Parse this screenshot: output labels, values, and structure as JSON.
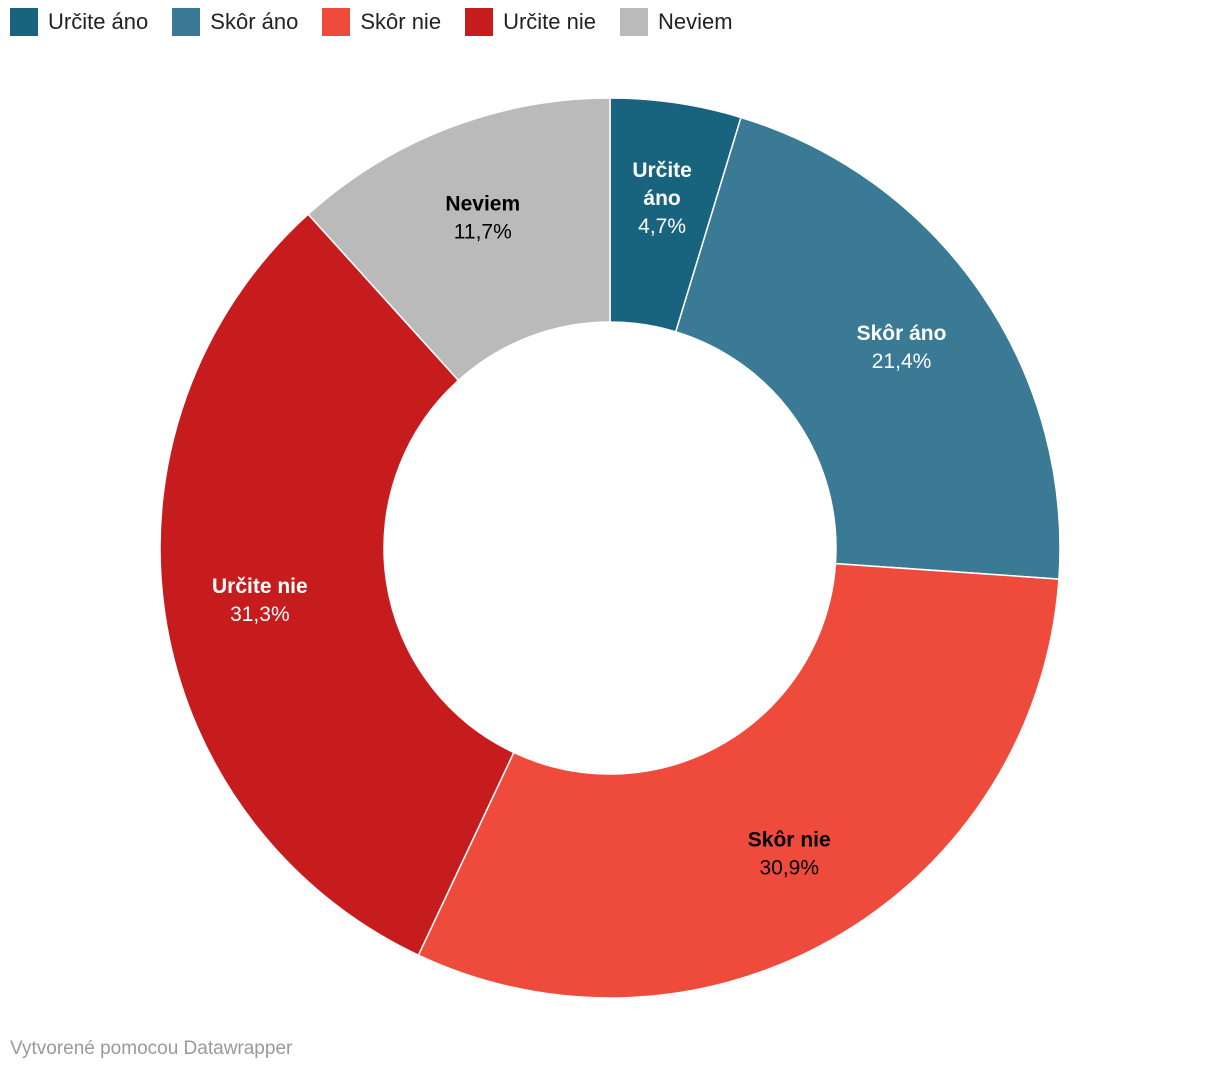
{
  "chart_data": {
    "type": "pie",
    "donut": true,
    "title": "",
    "legend_position": "top-left",
    "categories": [
      "Určite áno",
      "Skôr áno",
      "Skôr nie",
      "Určite nie",
      "Neviem"
    ],
    "values": [
      4.7,
      21.4,
      30.9,
      31.3,
      11.7
    ],
    "value_labels": [
      "4,7%",
      "21,4%",
      "30,9%",
      "31,3%",
      "11,7%"
    ],
    "slice_label_lines": [
      [
        "Určite",
        "áno"
      ],
      [
        "Skôr áno"
      ],
      [
        "Skôr nie"
      ],
      [
        "Určite nie"
      ],
      [
        "Neviem"
      ]
    ],
    "colors": [
      "#18637d",
      "#3a7a94",
      "#ef4b3c",
      "#c71c1d",
      "#bababa"
    ],
    "label_colors": [
      "#ffffff",
      "#ffffff",
      "#000000",
      "#ffffff",
      "#000000"
    ]
  },
  "legend": {
    "items": [
      {
        "label": "Určite áno",
        "color": "#18637d"
      },
      {
        "label": "Skôr áno",
        "color": "#3a7a94"
      },
      {
        "label": "Skôr nie",
        "color": "#ef4b3c"
      },
      {
        "label": "Určite nie",
        "color": "#c71c1d"
      },
      {
        "label": "Neviem",
        "color": "#bababa"
      }
    ]
  },
  "footer": {
    "credit": "Vytvorené pomocou Datawrapper"
  }
}
